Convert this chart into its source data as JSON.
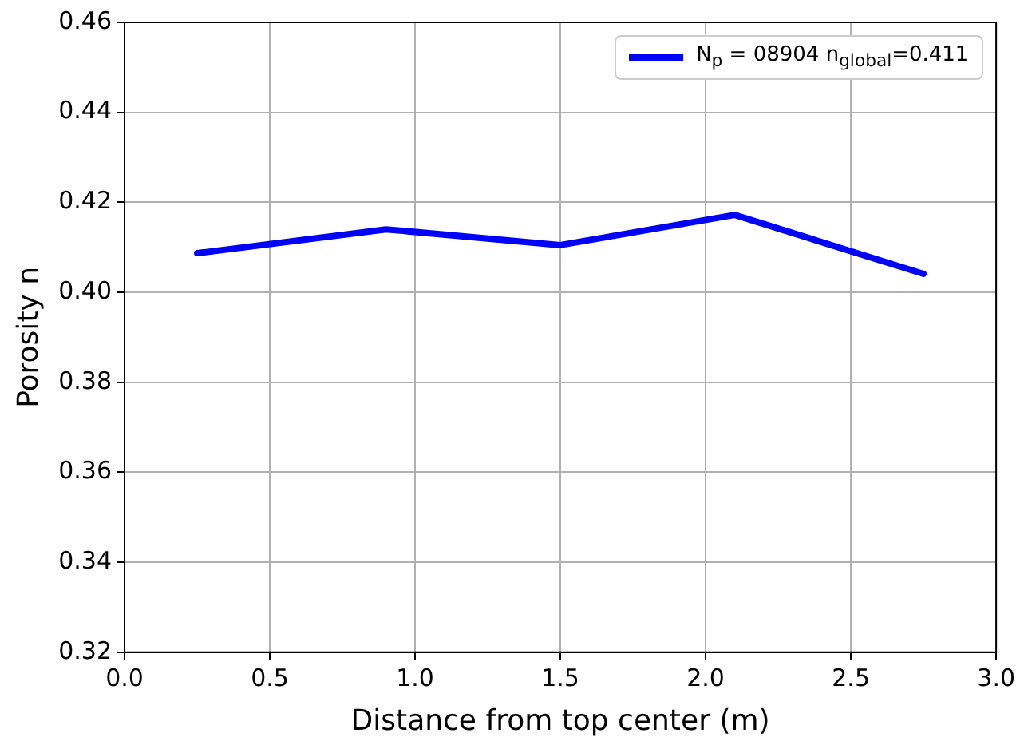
{
  "chart_data": {
    "type": "line",
    "xlabel": "Distance from top center (m)",
    "ylabel": "Porosity n",
    "x": [
      0.25,
      0.9,
      1.5,
      2.1,
      2.75
    ],
    "series": [
      {
        "name": "N$_{p}$ = 08904 n$_{global}$=0.411",
        "color": "#0000ff",
        "values": [
          0.4087,
          0.414,
          0.4105,
          0.4172,
          0.4041
        ]
      }
    ],
    "xlim": [
      0,
      3
    ],
    "ylim": [
      0.32,
      0.46
    ],
    "xticks": [
      {
        "value": 0,
        "label": "0.0"
      },
      {
        "value": 0.5,
        "label": "0.5"
      },
      {
        "value": 1,
        "label": "1.0"
      },
      {
        "value": 1.5,
        "label": "1.5"
      },
      {
        "value": 2,
        "label": "2.0"
      },
      {
        "value": 2.5,
        "label": "2.5"
      },
      {
        "value": 3,
        "label": "3.0"
      }
    ],
    "yticks": [
      {
        "value": 0.32,
        "label": "0.32"
      },
      {
        "value": 0.34,
        "label": "0.34"
      },
      {
        "value": 0.36,
        "label": "0.36"
      },
      {
        "value": 0.38,
        "label": "0.38"
      },
      {
        "value": 0.4,
        "label": "0.40"
      },
      {
        "value": 0.42,
        "label": "0.42"
      },
      {
        "value": 0.44,
        "label": "0.44"
      },
      {
        "value": 0.46,
        "label": "0.46"
      }
    ],
    "grid": true,
    "legend": "top right",
    "marker": "none",
    "line_style": "solid"
  }
}
